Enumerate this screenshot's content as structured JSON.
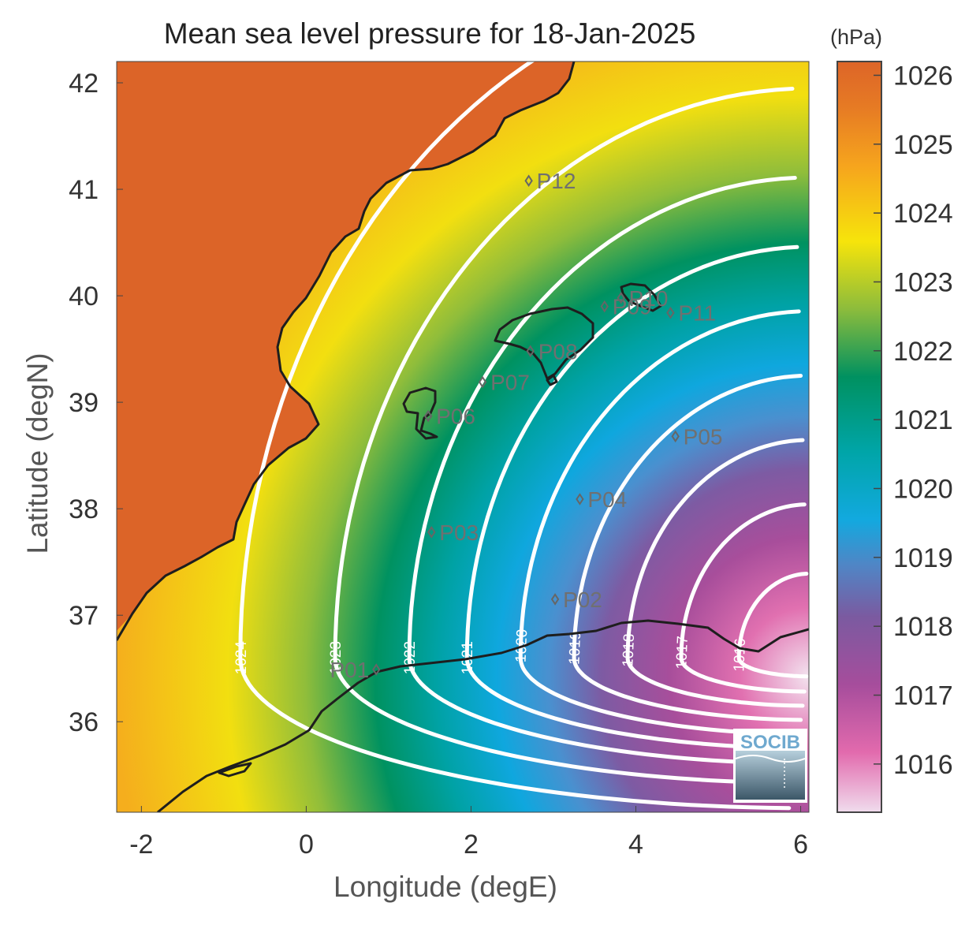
{
  "chart_data": {
    "type": "heatmap",
    "title": "Mean sea level pressure for 18-Jan-2025",
    "xlabel": "Longitude (degE)",
    "ylabel": "Latitude (degN)",
    "xlim": [
      -2.3,
      6.1
    ],
    "ylim": [
      35.15,
      42.2
    ],
    "x_ticks": [
      "-2",
      "0",
      "2",
      "4",
      "6"
    ],
    "y_ticks": [
      "36",
      "37",
      "38",
      "39",
      "40",
      "41",
      "42"
    ],
    "colorbar": {
      "unit": "(hPa)",
      "range": [
        1015.3,
        1026.2
      ],
      "ticks": [
        "1016",
        "1017",
        "1018",
        "1019",
        "1020",
        "1021",
        "1022",
        "1023",
        "1024",
        "1025",
        "1026"
      ],
      "colormap": [
        "#f0dced",
        "#e26aad",
        "#a64d9c",
        "#7b5aa0",
        "#4f86c6",
        "#12a9df",
        "#00a5a8",
        "#009160",
        "#8cbc3c",
        "#f6e40b",
        "#f6a51d",
        "#e06a2a"
      ]
    },
    "low_center": {
      "lon": 6.1,
      "lat": 36.6
    },
    "contours": [
      {
        "label": "1016",
        "r": 0.85,
        "x": 4.5
      },
      {
        "label": "1017",
        "r": 1.55,
        "x": 3.7
      },
      {
        "label": "1018",
        "r": 2.2,
        "x": 3.0
      },
      {
        "label": "1019",
        "r": 2.85,
        "x": 2.4
      },
      {
        "label": "1020",
        "r": 3.5,
        "x": 1.8
      },
      {
        "label": "1021",
        "r": 4.15,
        "x": 1.2
      },
      {
        "label": "1022",
        "r": 4.85,
        "x": 0.6
      },
      {
        "label": "1023",
        "r": 5.75,
        "x": -0.2
      },
      {
        "label": "1024",
        "r": 6.9,
        "x": -1.2
      }
    ],
    "stations": [
      {
        "name": "P01",
        "lon": 0.85,
        "lat": 36.49
      },
      {
        "name": "P02",
        "lon": 3.02,
        "lat": 37.15
      },
      {
        "name": "P03",
        "lon": 1.52,
        "lat": 37.78
      },
      {
        "name": "P04",
        "lon": 3.32,
        "lat": 38.09
      },
      {
        "name": "P05",
        "lon": 4.48,
        "lat": 38.68
      },
      {
        "name": "P06",
        "lon": 1.48,
        "lat": 38.87
      },
      {
        "name": "P07",
        "lon": 2.14,
        "lat": 39.19
      },
      {
        "name": "P08",
        "lon": 2.72,
        "lat": 39.48
      },
      {
        "name": "P09",
        "lon": 3.62,
        "lat": 39.9
      },
      {
        "name": "P10",
        "lon": 3.82,
        "lat": 39.98
      },
      {
        "name": "P11",
        "lon": 4.42,
        "lat": 39.84
      },
      {
        "name": "P12",
        "lon": 2.7,
        "lat": 41.08
      }
    ],
    "logo": "SOCIB"
  }
}
